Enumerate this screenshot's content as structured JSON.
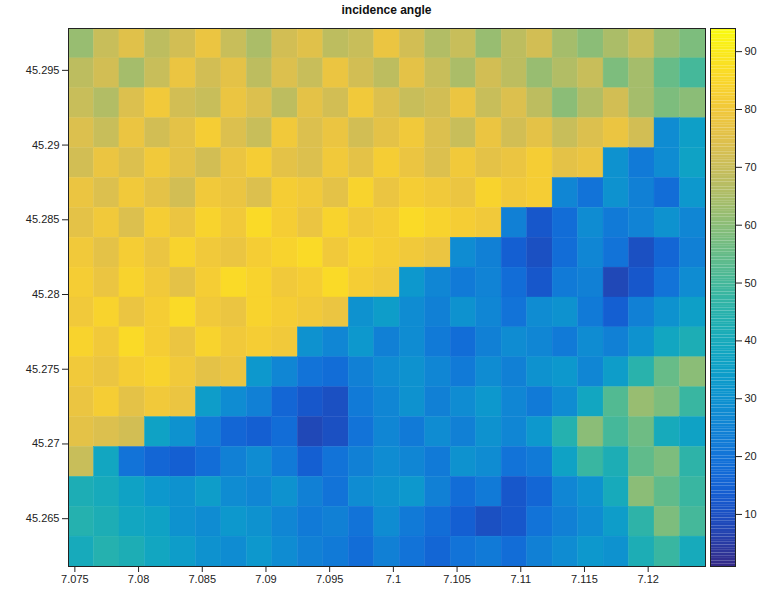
{
  "chart_data": {
    "type": "heatmap",
    "title": "incidence angle",
    "x": [
      7.0755,
      7.0775,
      7.0795,
      7.0815,
      7.0835,
      7.0855,
      7.0875,
      7.0895,
      7.0915,
      7.0935,
      7.0955,
      7.0975,
      7.0995,
      7.1015,
      7.1035,
      7.1055,
      7.1075,
      7.1095,
      7.1115,
      7.1135,
      7.1155,
      7.1175,
      7.1195,
      7.1215,
      7.1235
    ],
    "y": [
      45.2968,
      45.2948,
      45.2928,
      45.2908,
      45.2888,
      45.2868,
      45.2848,
      45.2828,
      45.2808,
      45.2788,
      45.2768,
      45.2748,
      45.2728,
      45.2708,
      45.2688,
      45.2668,
      45.2648,
      45.2628
    ],
    "values": [
      [
        62,
        70,
        75,
        68,
        72,
        78,
        70,
        65,
        72,
        75,
        68,
        70,
        78,
        72,
        66,
        70,
        62,
        68,
        72,
        64,
        60,
        65,
        70,
        62,
        58
      ],
      [
        68,
        72,
        64,
        70,
        78,
        72,
        76,
        68,
        74,
        70,
        78,
        72,
        68,
        76,
        70,
        65,
        72,
        68,
        62,
        66,
        70,
        58,
        64,
        55,
        50
      ],
      [
        70,
        66,
        74,
        80,
        72,
        70,
        78,
        74,
        68,
        76,
        72,
        80,
        74,
        70,
        72,
        78,
        70,
        74,
        68,
        60,
        66,
        72,
        64,
        58,
        60
      ],
      [
        74,
        70,
        78,
        72,
        76,
        82,
        74,
        70,
        80,
        74,
        78,
        72,
        76,
        80,
        74,
        70,
        78,
        72,
        76,
        70,
        74,
        78,
        72,
        28,
        35
      ],
      [
        72,
        78,
        74,
        80,
        76,
        72,
        78,
        82,
        76,
        74,
        80,
        76,
        82,
        78,
        74,
        80,
        76,
        78,
        82,
        76,
        78,
        30,
        22,
        28,
        36
      ],
      [
        78,
        74,
        80,
        76,
        72,
        80,
        78,
        74,
        82,
        80,
        76,
        84,
        78,
        82,
        80,
        78,
        84,
        80,
        82,
        26,
        20,
        30,
        24,
        18,
        32
      ],
      [
        76,
        80,
        74,
        82,
        78,
        84,
        80,
        86,
        82,
        78,
        84,
        80,
        82,
        86,
        84,
        82,
        80,
        24,
        12,
        18,
        28,
        22,
        25,
        30,
        26
      ],
      [
        80,
        76,
        82,
        78,
        84,
        80,
        78,
        82,
        84,
        86,
        80,
        84,
        82,
        80,
        78,
        28,
        24,
        14,
        10,
        18,
        26,
        20,
        10,
        16,
        24
      ],
      [
        82,
        78,
        84,
        80,
        76,
        82,
        86,
        84,
        80,
        82,
        86,
        82,
        80,
        32,
        26,
        22,
        25,
        18,
        12,
        22,
        24,
        8,
        12,
        20,
        28
      ],
      [
        80,
        84,
        78,
        82,
        86,
        80,
        78,
        84,
        82,
        80,
        78,
        30,
        34,
        28,
        24,
        30,
        26,
        20,
        28,
        30,
        22,
        14,
        24,
        30,
        35
      ],
      [
        84,
        80,
        86,
        82,
        78,
        84,
        80,
        82,
        80,
        30,
        26,
        32,
        24,
        28,
        22,
        18,
        24,
        28,
        26,
        22,
        28,
        24,
        30,
        38,
        42
      ],
      [
        80,
        78,
        82,
        84,
        80,
        76,
        78,
        32,
        26,
        20,
        18,
        24,
        28,
        30,
        26,
        22,
        28,
        24,
        30,
        32,
        26,
        34,
        45,
        55,
        60
      ],
      [
        78,
        82,
        76,
        80,
        78,
        34,
        28,
        24,
        16,
        12,
        10,
        22,
        26,
        30,
        24,
        28,
        32,
        26,
        22,
        28,
        38,
        52,
        62,
        58,
        48
      ],
      [
        76,
        74,
        72,
        36,
        30,
        22,
        16,
        14,
        18,
        8,
        10,
        20,
        26,
        22,
        28,
        24,
        30,
        26,
        32,
        44,
        60,
        50,
        56,
        40,
        36
      ],
      [
        70,
        38,
        20,
        16,
        14,
        18,
        24,
        28,
        22,
        14,
        20,
        24,
        28,
        26,
        22,
        30,
        28,
        20,
        22,
        36,
        48,
        42,
        54,
        58,
        46
      ],
      [
        42,
        40,
        36,
        32,
        30,
        34,
        28,
        26,
        30,
        24,
        20,
        28,
        30,
        32,
        24,
        18,
        22,
        12,
        16,
        26,
        30,
        40,
        60,
        54,
        48
      ],
      [
        44,
        42,
        38,
        36,
        30,
        28,
        32,
        30,
        26,
        22,
        24,
        20,
        28,
        22,
        18,
        14,
        10,
        12,
        20,
        24,
        28,
        34,
        46,
        58,
        50
      ],
      [
        40,
        44,
        42,
        38,
        34,
        30,
        28,
        32,
        28,
        24,
        22,
        18,
        24,
        20,
        16,
        20,
        22,
        18,
        24,
        28,
        32,
        30,
        42,
        48,
        40
      ]
    ],
    "xlim": [
      7.0745,
      7.1245
    ],
    "ylim": [
      45.2618,
      45.2978
    ],
    "xticks": [
      7.075,
      7.08,
      7.085,
      7.09,
      7.095,
      7.1,
      7.105,
      7.11,
      7.115,
      7.12
    ],
    "yticks": [
      45.265,
      45.27,
      45.275,
      45.28,
      45.285,
      45.29,
      45.295
    ],
    "colorbar": {
      "range": [
        1,
        94
      ],
      "ticks": [
        10,
        20,
        30,
        40,
        50,
        60,
        70,
        80,
        90
      ]
    }
  }
}
